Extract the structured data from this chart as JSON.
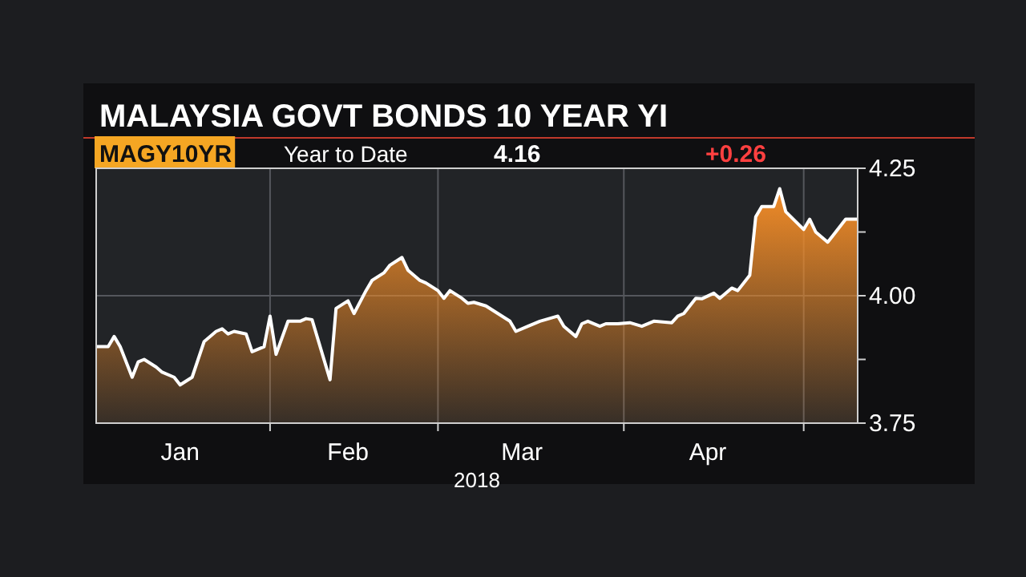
{
  "chart_data": {
    "type": "area",
    "title": "MALAYSIA GOVT BONDS 10 YEAR YI",
    "xlabel": "2018",
    "annotations": [
      "MAGY10YR",
      "Year to Date",
      "4.16",
      "+0.26"
    ],
    "x": [
      "2018-01-03",
      "2018-01-05",
      "2018-01-06",
      "2018-01-07",
      "2018-01-09",
      "2018-01-10",
      "2018-01-11",
      "2018-01-13",
      "2018-01-14",
      "2018-01-16",
      "2018-01-17",
      "2018-01-19",
      "2018-01-21",
      "2018-01-23",
      "2018-01-24",
      "2018-01-25",
      "2018-01-26",
      "2018-01-28",
      "2018-01-29",
      "2018-01-31",
      "2018-02-01",
      "2018-02-02",
      "2018-02-04",
      "2018-02-06",
      "2018-02-07",
      "2018-02-08",
      "2018-02-11",
      "2018-02-12",
      "2018-02-14",
      "2018-02-15",
      "2018-02-17",
      "2018-02-18",
      "2018-02-20",
      "2018-02-21",
      "2018-02-23",
      "2018-02-24",
      "2018-02-26",
      "2018-02-27",
      "2018-03-01",
      "2018-03-02",
      "2018-03-03",
      "2018-03-05",
      "2018-03-06",
      "2018-03-07",
      "2018-03-09",
      "2018-03-11",
      "2018-03-13",
      "2018-03-14",
      "2018-03-16",
      "2018-03-18",
      "2018-03-21",
      "2018-03-22",
      "2018-03-24",
      "2018-03-25",
      "2018-03-26",
      "2018-03-28",
      "2018-03-29",
      "2018-03-31",
      "2018-04-02",
      "2018-04-04",
      "2018-04-06",
      "2018-04-09",
      "2018-04-10",
      "2018-04-11",
      "2018-04-13",
      "2018-04-14",
      "2018-04-16",
      "2018-04-17",
      "2018-04-19",
      "2018-04-20",
      "2018-04-22",
      "2018-04-23",
      "2018-04-24",
      "2018-04-26",
      "2018-04-27",
      "2018-04-28",
      "2018-05-01",
      "2018-05-02",
      "2018-05-03",
      "2018-05-05",
      "2018-05-06",
      "2018-05-08",
      "2018-05-10"
    ],
    "series": [
      {
        "color": "#f28c28",
        "values": [
          3.9,
          3.9,
          3.92,
          3.9,
          3.84,
          3.87,
          3.875,
          3.86,
          3.85,
          3.84,
          3.825,
          3.84,
          3.91,
          3.93,
          3.935,
          3.925,
          3.93,
          3.925,
          3.89,
          3.9,
          3.96,
          3.885,
          3.95,
          3.95,
          3.955,
          3.953,
          3.835,
          3.975,
          3.99,
          3.965,
          4.01,
          4.03,
          4.045,
          4.06,
          4.075,
          4.05,
          4.03,
          4.025,
          4.01,
          3.995,
          4.01,
          3.995,
          3.985,
          3.987,
          3.98,
          3.965,
          3.95,
          3.93,
          3.94,
          3.95,
          3.96,
          3.94,
          3.92,
          3.945,
          3.95,
          3.94,
          3.945,
          3.945,
          3.947,
          3.94,
          3.95,
          3.947,
          3.96,
          3.965,
          3.995,
          3.994,
          4.005,
          3.995,
          4.015,
          4.01,
          4.04,
          4.155,
          4.175,
          4.175,
          4.21,
          4.165,
          4.13,
          4.15,
          4.125,
          4.105,
          4.12,
          4.15,
          4.15
        ]
      }
    ],
    "xlim": [
      "2018-01-03",
      "2018-05-10"
    ],
    "xticks": [
      {
        "value": "2018-01-17",
        "label": "Jan"
      },
      {
        "value": "2018-02-01",
        "label": null
      },
      {
        "value": "2018-02-14",
        "label": "Feb"
      },
      {
        "value": "2018-03-01",
        "label": null
      },
      {
        "value": "2018-03-15",
        "label": "Mar"
      },
      {
        "value": "2018-04-01",
        "label": null
      },
      {
        "value": "2018-04-15",
        "label": "Apr"
      },
      {
        "value": "2018-05-01",
        "label": null
      }
    ],
    "ylim": [
      3.75,
      4.25
    ],
    "yticks": [
      {
        "value": 3.75,
        "label": "3.75"
      },
      {
        "value": 3.875,
        "label": null
      },
      {
        "value": 4.0,
        "label": "4.00"
      },
      {
        "value": 4.125,
        "label": null
      },
      {
        "value": 4.25,
        "label": "4.25"
      }
    ],
    "grid": true
  }
}
